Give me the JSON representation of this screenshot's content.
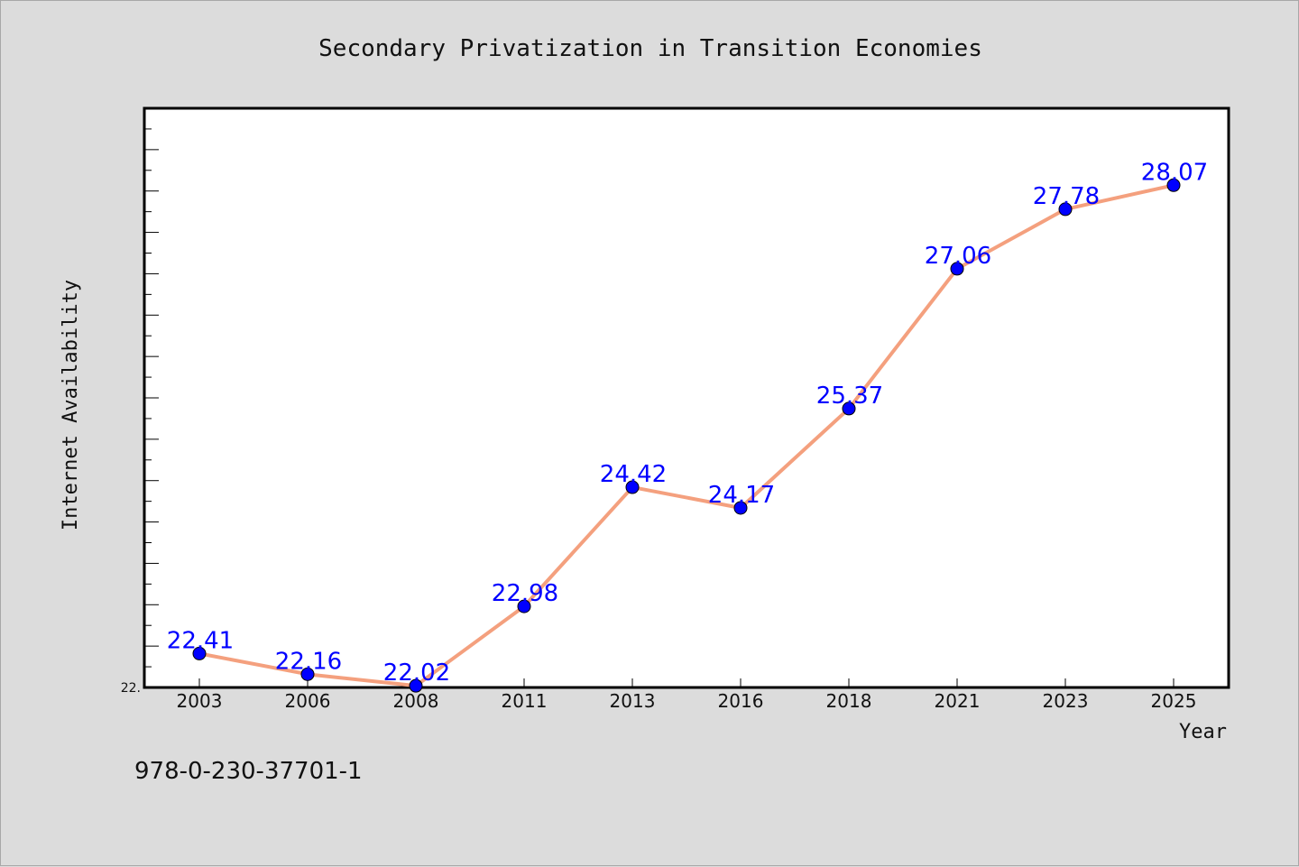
{
  "chart_data": {
    "type": "line",
    "title": "Secondary Privatization in Transition Economies",
    "xlabel": "Year",
    "ylabel": "Internet Availability",
    "categories": [
      "2003",
      "2006",
      "2008",
      "2011",
      "2013",
      "2016",
      "2018",
      "2021",
      "2023",
      "2025"
    ],
    "series": [
      {
        "values": [
          22.41,
          22.16,
          22.02,
          22.98,
          24.42,
          24.17,
          25.37,
          27.06,
          27.78,
          28.07
        ],
        "line_color": "#f4a07e",
        "marker_color": "#0000ff"
      }
    ],
    "data_labels": [
      "22.41",
      "22.16",
      "22.02",
      "22.98",
      "24.42",
      "24.17",
      "25.37",
      "27.06",
      "27.78",
      "28.07"
    ],
    "y_tick_labels": [
      "22."
    ],
    "ylim": [
      22.0,
      29.0
    ],
    "grid": false,
    "legend": "none"
  },
  "footer": {
    "isbn": "978-0-230-37701-1"
  }
}
